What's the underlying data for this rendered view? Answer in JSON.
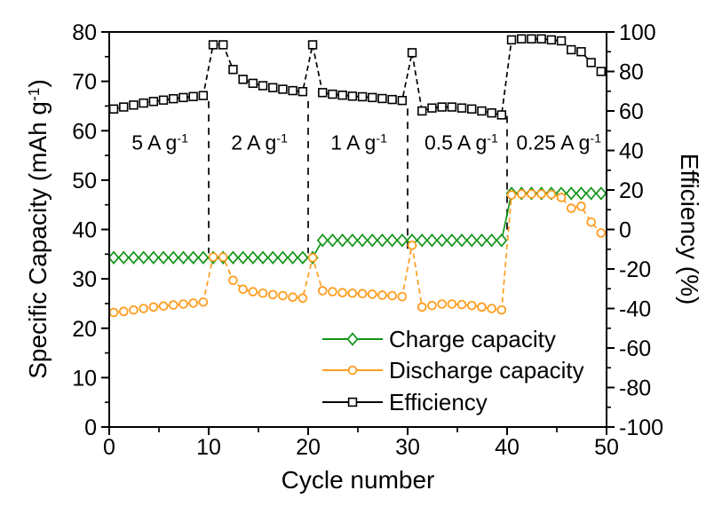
{
  "background": "#ffffff",
  "chart_data": {
    "type": "line",
    "title": "",
    "xlabel": "Cycle number",
    "ylabel_left": "Specific Capacity (mAh g⁻¹)",
    "ylabel_right": "Efficiency (%)",
    "xlim": [
      0,
      50
    ],
    "ylim_left": [
      0,
      80
    ],
    "ylim_right": [
      -100,
      100
    ],
    "x_major_ticks": [
      0,
      10,
      20,
      30,
      40,
      50
    ],
    "x_minor_ticks": [
      5,
      15,
      25,
      35,
      45
    ],
    "y_left_major_ticks": [
      0,
      10,
      20,
      30,
      40,
      50,
      60,
      70,
      80
    ],
    "y_left_minor_ticks": [
      5,
      15,
      25,
      35,
      45,
      55,
      65,
      75
    ],
    "y_right_major_ticks": [
      -100,
      -80,
      -60,
      -40,
      -20,
      0,
      20,
      40,
      60,
      80,
      100
    ],
    "y_right_minor_ticks": [
      -90,
      -70,
      -50,
      -30,
      -10,
      10,
      30,
      50,
      70,
      90
    ],
    "grid": false,
    "legend_position": "inside-bottom-right",
    "x_start": 1,
    "x_step": 1,
    "n": 50,
    "rate_annotations": [
      {
        "label": "5 A g⁻¹",
        "x": 5.1,
        "y": 58
      },
      {
        "label": "2 A g⁻¹",
        "x": 15.1,
        "y": 58
      },
      {
        "label": "1 A g⁻¹",
        "x": 25.1,
        "y": 58
      },
      {
        "label": "0.5 A g⁻¹",
        "x": 35.4,
        "y": 58
      },
      {
        "label": "0.25 A g⁻¹",
        "x": 45.2,
        "y": 58
      }
    ],
    "separators": [
      {
        "x": 10,
        "y_from": 35.2,
        "y_to": 66.0
      },
      {
        "x": 20,
        "y_from": 35.2,
        "y_to": 66.0
      },
      {
        "x": 30,
        "y_from": 35.2,
        "y_to": 64.5
      },
      {
        "x": 40,
        "y_from": 38.6,
        "y_to": 63.0
      }
    ],
    "series": [
      {
        "name": "Charge capacity",
        "axis": "left",
        "color": "#119417",
        "marker": "diamond",
        "line_style": "solid",
        "values": [
          34.3,
          34.3,
          34.3,
          34.3,
          34.3,
          34.3,
          34.3,
          34.3,
          34.3,
          34.3,
          34.3,
          34.3,
          34.3,
          34.3,
          34.3,
          34.3,
          34.3,
          34.3,
          34.3,
          34.3,
          34.3,
          37.8,
          37.8,
          37.8,
          37.8,
          37.8,
          37.8,
          37.8,
          37.8,
          37.8,
          37.8,
          37.8,
          37.8,
          37.8,
          37.8,
          37.8,
          37.8,
          37.8,
          37.8,
          37.8,
          47.3,
          47.3,
          47.3,
          47.3,
          47.3,
          47.3,
          47.3,
          47.3,
          47.3,
          47.3
        ]
      },
      {
        "name": "Discharge capacity",
        "axis": "left",
        "color": "#ff9d1f",
        "marker": "circle",
        "line_style": "dash",
        "values": [
          23.2,
          23.4,
          23.7,
          24.0,
          24.3,
          24.5,
          24.7,
          24.9,
          25.1,
          25.3,
          34.4,
          34.4,
          29.7,
          27.9,
          27.4,
          27.1,
          26.8,
          26.6,
          26.3,
          26.1,
          34.3,
          27.6,
          27.4,
          27.2,
          27.1,
          27.0,
          26.9,
          26.7,
          26.6,
          26.4,
          36.8,
          24.3,
          24.6,
          24.9,
          24.9,
          24.8,
          24.6,
          24.3,
          24.0,
          23.7,
          47.0,
          47.2,
          47.2,
          47.2,
          47.1,
          46.5,
          44.3,
          44.7,
          41.5,
          39.3
        ]
      },
      {
        "name": "Efficiency",
        "axis": "right",
        "color": "#000000",
        "marker": "square",
        "line_style": "dash",
        "values": [
          61.0,
          62.0,
          63.0,
          64.0,
          64.8,
          65.5,
          66.2,
          66.8,
          67.3,
          67.8,
          93.5,
          93.5,
          81.0,
          76.0,
          74.0,
          72.8,
          71.8,
          71.0,
          70.3,
          69.8,
          93.5,
          69.3,
          68.5,
          68.0,
          67.5,
          67.2,
          66.8,
          66.3,
          65.8,
          65.3,
          89.5,
          60.0,
          61.5,
          62.0,
          62.0,
          61.5,
          61.0,
          60.0,
          59.0,
          58.0,
          96.0,
          96.5,
          96.5,
          96.5,
          96.0,
          95.5,
          91.0,
          90.0,
          84.5,
          80.0
        ]
      }
    ]
  }
}
